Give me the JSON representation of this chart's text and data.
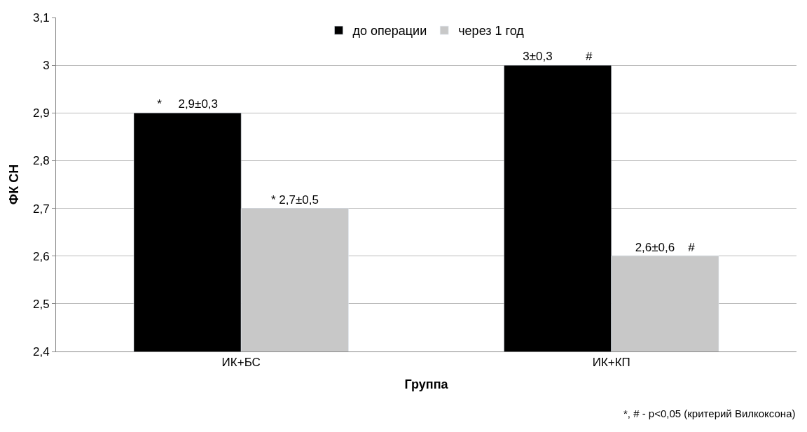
{
  "chart_data": {
    "type": "bar",
    "xlabel": "Группа",
    "ylabel": "ФК СН",
    "categories": [
      "ИК+БС",
      "ИК+КП"
    ],
    "series": [
      {
        "name": "до операции",
        "color": "#000000",
        "values": [
          2.9,
          3.0
        ],
        "value_labels": [
          "*     2,9±0,3",
          "3±0,3          #"
        ]
      },
      {
        "name": "через 1 год",
        "color": "#c8c8c8",
        "values": [
          2.7,
          2.6
        ],
        "value_labels": [
          "* 2,7±0,5",
          "2,6±0,6    #"
        ]
      }
    ],
    "ylim": [
      2.4,
      3.1
    ],
    "yticks": [
      {
        "value": 2.4,
        "label": "2,4"
      },
      {
        "value": 2.5,
        "label": "2,5"
      },
      {
        "value": 2.6,
        "label": "2,6"
      },
      {
        "value": 2.7,
        "label": "2,7"
      },
      {
        "value": 2.8,
        "label": "2,8"
      },
      {
        "value": 2.9,
        "label": "2,9"
      },
      {
        "value": 3.0,
        "label": "3"
      },
      {
        "value": 3.1,
        "label": "3,1"
      }
    ],
    "grid": "y",
    "legend": "top",
    "annotations": [
      "*, # - p<0,05 (критерий Вилкоксона)"
    ]
  }
}
